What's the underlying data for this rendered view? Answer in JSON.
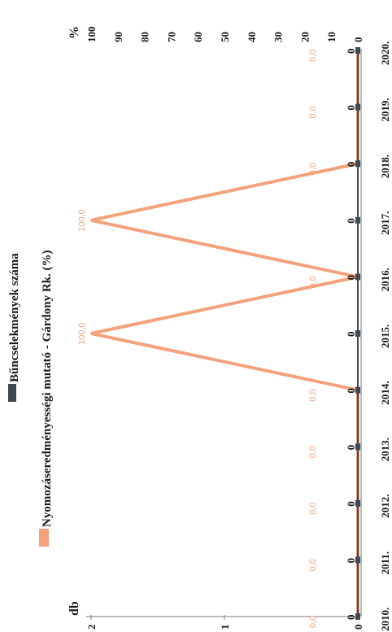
{
  "chart_data": {
    "type": "line",
    "orientation": "rotated-90",
    "categories": [
      "2010.",
      "2011.",
      "2012.",
      "2013.",
      "2014.",
      "2015.",
      "2016.",
      "2017.",
      "2018.",
      "2019.",
      "2020."
    ],
    "series": [
      {
        "name": "Bűncselekmények száma",
        "axis": "left",
        "values": [
          0,
          0,
          0,
          0,
          0,
          0,
          0,
          0,
          0,
          0,
          0
        ],
        "labels": [
          "0",
          "0",
          "0",
          "0",
          "0",
          "0",
          "0",
          "0",
          "0",
          "0",
          "0"
        ],
        "color": "#3d4a52"
      },
      {
        "name": "Nyomozáseredményességi mutató - Gárdony Rk. (%)",
        "axis": "right",
        "values": [
          0,
          0,
          0,
          0,
          0,
          100,
          0,
          100,
          0,
          0,
          0
        ],
        "labels": [
          "0,0",
          "0,0",
          "0,0",
          "0,0",
          "0,0",
          "100,0",
          "0,0",
          "100,0",
          "0,0",
          "0,0",
          "0,0"
        ],
        "color": "#f4a27c"
      }
    ],
    "left_axis": {
      "unit": "db",
      "ticks": [
        "0",
        "1",
        "2"
      ],
      "ylim": [
        0,
        2
      ]
    },
    "right_axis": {
      "unit": "%",
      "ticks": [
        "0",
        "10",
        "20",
        "30",
        "40",
        "50",
        "60",
        "70",
        "80",
        "90",
        "100"
      ],
      "ylim": [
        0,
        100
      ]
    },
    "legend_placement": "left",
    "grid": false
  }
}
